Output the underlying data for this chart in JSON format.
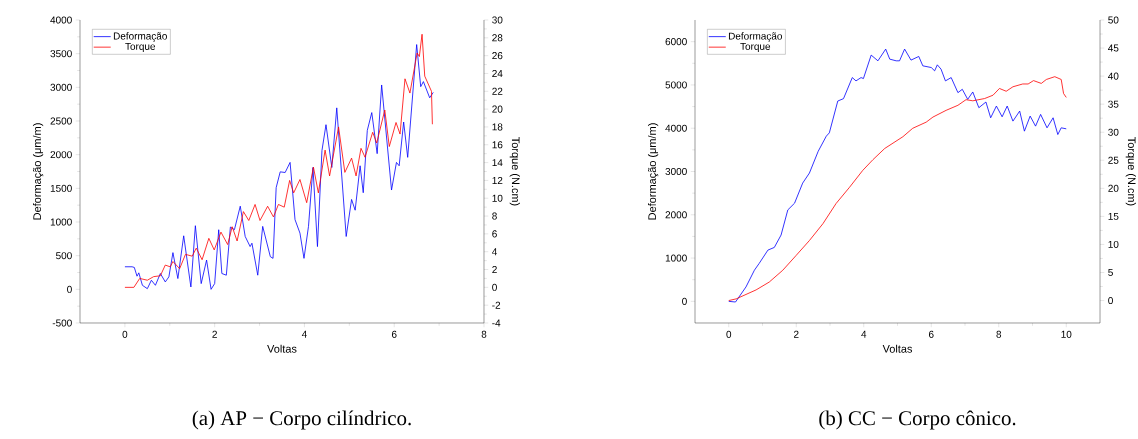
{
  "chart_data": [
    {
      "type": "line",
      "xlabel": "Voltas",
      "ylabel": "Deformação (μm/m)",
      "y2label": "Torque (N.cm)",
      "annotations": [
        "(a) AP − Corpo cilíndrico."
      ],
      "legend": "top left",
      "xlim": [
        -1,
        8
      ],
      "xticks": [
        0,
        2,
        4,
        6,
        8
      ],
      "ylim": [
        -500,
        4000
      ],
      "yticks": [
        -500,
        0,
        500,
        1000,
        1500,
        2000,
        2500,
        3000,
        3500,
        4000
      ],
      "y2lim": [
        -4,
        30
      ],
      "y2ticks": [
        -4,
        -2,
        0,
        2,
        4,
        6,
        8,
        10,
        12,
        14,
        16,
        18,
        20,
        22,
        24,
        26,
        28,
        30
      ],
      "series": [
        {
          "name": "Deformação",
          "color": "#0000ff",
          "x": [
            0,
            0.16,
            0.21,
            0.27,
            0.31,
            0.39,
            0.5,
            0.59,
            0.68,
            0.79,
            0.9,
            0.98,
            1.07,
            1.18,
            1.31,
            1.47,
            1.57,
            1.7,
            1.82,
            1.92,
            2.0,
            2.09,
            2.16,
            2.26,
            2.35,
            2.44,
            2.57,
            2.68,
            2.79,
            2.83,
            2.96,
            3.07,
            3.24,
            3.3,
            3.37,
            3.46,
            3.57,
            3.68,
            3.79,
            3.9,
            3.99,
            4.09,
            4.19,
            4.29,
            4.39,
            4.48,
            4.61,
            4.72,
            4.93,
            5.05,
            5.13,
            5.24,
            5.31,
            5.4,
            5.5,
            5.62,
            5.72,
            5.94,
            6.05,
            6.11,
            6.21,
            6.3,
            6.5,
            6.59,
            6.65,
            6.79,
            6.87
          ],
          "values": [
            335,
            335,
            325,
            195,
            245,
            60,
            10,
            135,
            60,
            235,
            110,
            185,
            545,
            160,
            795,
            35,
            945,
            85,
            435,
            0,
            85,
            885,
            235,
            210,
            925,
            885,
            1235,
            785,
            635,
            685,
            210,
            935,
            485,
            460,
            1510,
            1745,
            1735,
            1885,
            1035,
            835,
            460,
            935,
            1810,
            635,
            2060,
            2445,
            1810,
            2695,
            785,
            1335,
            1175,
            1835,
            1435,
            2360,
            2625,
            2015,
            3035,
            1475,
            1885,
            1835,
            2485,
            1960,
            3635,
            3010,
            3085,
            2845,
            2925
          ]
        },
        {
          "name": "Torque",
          "color": "#ff0000",
          "axis": "y2",
          "x": [
            0,
            0.2,
            0.33,
            0.5,
            0.64,
            0.79,
            0.9,
            1.01,
            1.07,
            1.22,
            1.35,
            1.5,
            1.59,
            1.72,
            1.87,
            1.99,
            2.14,
            2.29,
            2.39,
            2.5,
            2.64,
            2.76,
            2.9,
            3.01,
            3.18,
            3.31,
            3.42,
            3.55,
            3.67,
            3.76,
            3.9,
            4.05,
            4.2,
            4.31,
            4.46,
            4.56,
            4.76,
            4.9,
            5.05,
            5.15,
            5.26,
            5.35,
            5.52,
            5.61,
            5.79,
            5.89,
            6.04,
            6.13,
            6.24,
            6.35,
            6.51,
            6.56,
            6.62,
            6.68,
            6.83,
            6.85
          ],
          "values": [
            0,
            0,
            1.0,
            0.8,
            1.2,
            1.3,
            2.5,
            2.3,
            2.9,
            2.1,
            3.7,
            3.5,
            4.4,
            3.1,
            5.5,
            4.2,
            6.2,
            4.8,
            6.8,
            5.2,
            8.5,
            7.5,
            9.3,
            7.5,
            9.1,
            7.9,
            9.3,
            9.0,
            12.0,
            10.6,
            12.1,
            9.5,
            13.5,
            10.6,
            15.4,
            12.5,
            18.0,
            12.9,
            14.5,
            12.5,
            15.6,
            14.6,
            17.4,
            16.2,
            19.9,
            15.8,
            18.5,
            17.2,
            23.4,
            21.8,
            26.3,
            25.9,
            28.4,
            23.7,
            22.0,
            18.3
          ]
        }
      ]
    },
    {
      "type": "line",
      "xlabel": "Voltas",
      "ylabel": "Deformação (μm/m)",
      "y2label": "Torque (N.cm)",
      "annotations": [
        "(b) CC − Corpo cônico."
      ],
      "legend": "top left",
      "xlim": [
        -1,
        11
      ],
      "xticks": [
        0,
        2,
        4,
        6,
        8,
        10
      ],
      "ylim": [
        -500,
        6500
      ],
      "yticks": [
        0,
        1000,
        2000,
        3000,
        4000,
        5000,
        6000
      ],
      "y2lim": [
        -4,
        50
      ],
      "y2ticks": [
        0,
        5,
        10,
        15,
        20,
        25,
        30,
        35,
        40,
        45,
        50
      ],
      "series": [
        {
          "name": "Deformação",
          "color": "#0000ff",
          "x": [
            0,
            0.2,
            0.51,
            0.76,
            0.9,
            1.16,
            1.35,
            1.55,
            1.75,
            1.95,
            2.19,
            2.39,
            2.65,
            2.89,
            2.98,
            3.23,
            3.4,
            3.66,
            3.77,
            3.92,
            3.99,
            4.22,
            4.42,
            4.65,
            4.77,
            4.96,
            5.06,
            5.21,
            5.4,
            5.63,
            5.75,
            6.0,
            6.1,
            6.18,
            6.29,
            6.42,
            6.59,
            6.79,
            6.92,
            7.08,
            7.23,
            7.41,
            7.62,
            7.76,
            7.93,
            8.1,
            8.25,
            8.42,
            8.62,
            8.76,
            8.93,
            9.09,
            9.24,
            9.43,
            9.61,
            9.75,
            9.85,
            10.0
          ],
          "values": [
            0,
            -15,
            333,
            720,
            875,
            1184,
            1246,
            1532,
            2113,
            2268,
            2732,
            2964,
            3467,
            3816,
            3893,
            4628,
            4683,
            5170,
            5093,
            5170,
            5147,
            5689,
            5557,
            5828,
            5596,
            5557,
            5557,
            5828,
            5573,
            5658,
            5441,
            5402,
            5325,
            5464,
            5364,
            5093,
            5170,
            4822,
            4899,
            4667,
            4837,
            4474,
            4605,
            4241,
            4512,
            4264,
            4512,
            4164,
            4396,
            3932,
            4280,
            4048,
            4319,
            4009,
            4241,
            3854,
            4009,
            3986
          ]
        },
        {
          "name": "Torque",
          "color": "#ff0000",
          "axis": "y2",
          "x": [
            0,
            0.22,
            0.81,
            1.2,
            1.6,
            1.99,
            2.39,
            2.79,
            3.18,
            3.58,
            3.97,
            4.27,
            4.62,
            5.16,
            5.45,
            5.85,
            6.05,
            6.44,
            6.79,
            7.03,
            7.23,
            7.58,
            7.83,
            8.02,
            8.22,
            8.42,
            8.71,
            8.87,
            9.03,
            9.26,
            9.41,
            9.66,
            9.85,
            9.92,
            10.0
          ],
          "values": [
            0,
            0.3,
            1.9,
            3.3,
            5.4,
            8.0,
            10.7,
            13.7,
            17.3,
            20.2,
            23.2,
            25.1,
            27.1,
            29.2,
            30.7,
            31.8,
            32.7,
            33.9,
            34.8,
            35.8,
            35.6,
            36.0,
            36.6,
            37.8,
            37.3,
            38.1,
            38.6,
            38.6,
            39.2,
            38.7,
            39.4,
            39.9,
            39.4,
            36.9,
            36.2
          ]
        }
      ]
    }
  ]
}
